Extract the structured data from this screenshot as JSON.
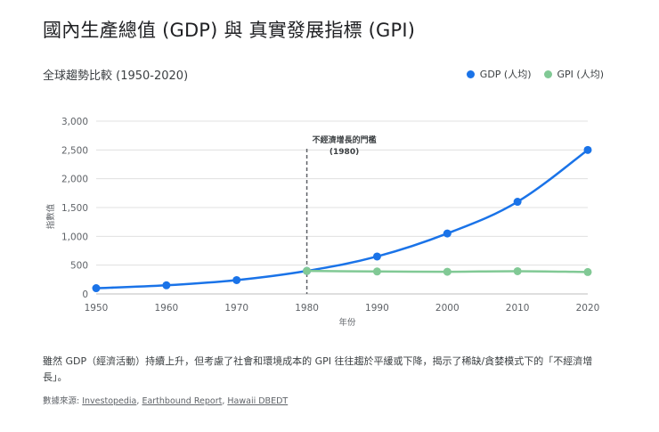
{
  "title": "國內生產總值 (GDP) 與 真實發展指標 (GPI)",
  "subtitle": "全球趨勢比較 (1950-2020)",
  "caption": "雖然 GDP（經濟活動）持續上升，但考慮了社會和環境成本的 GPI 往往趨於平緩或下降，揭示了稀缺/貪婪模式下的「不經濟增長」。",
  "sources": {
    "label": "數據來源:",
    "links": [
      "Investopedia",
      "Earthbound Report",
      "Hawaii DBEDT"
    ]
  },
  "colors": {
    "gdp": "#1a73e8",
    "gpi": "#81c995",
    "threshold": "#5f6368",
    "grid": "#e0e0e0"
  },
  "chart_data": {
    "type": "line",
    "x": [
      1950,
      1960,
      1970,
      1980,
      1990,
      2000,
      2010,
      2020
    ],
    "xlabel": "年份",
    "ylabel": "指數值",
    "ylim": [
      0,
      3000
    ],
    "yticks": [
      "0",
      "500",
      "1,000",
      "1,500",
      "2,000",
      "2,500",
      "3,000"
    ],
    "ytick_values": [
      0,
      500,
      1000,
      1500,
      2000,
      2500,
      3000
    ],
    "grid": true,
    "legend_position": "top-right",
    "series": [
      {
        "name": "GDP (人均)",
        "color": "#1a73e8",
        "x": [
          1950,
          1960,
          1970,
          1980,
          1990,
          2000,
          2010,
          2020
        ],
        "values": [
          100,
          150,
          240,
          400,
          650,
          1050,
          1600,
          2500
        ]
      },
      {
        "name": "GPI (人均)",
        "color": "#81c995",
        "x": [
          1980,
          1990,
          2000,
          2010,
          2020
        ],
        "values": [
          400,
          390,
          385,
          395,
          380
        ]
      }
    ],
    "annotation": {
      "x": 1980,
      "lines": [
        "不經濟增長的門檻",
        "(1980)"
      ]
    }
  }
}
